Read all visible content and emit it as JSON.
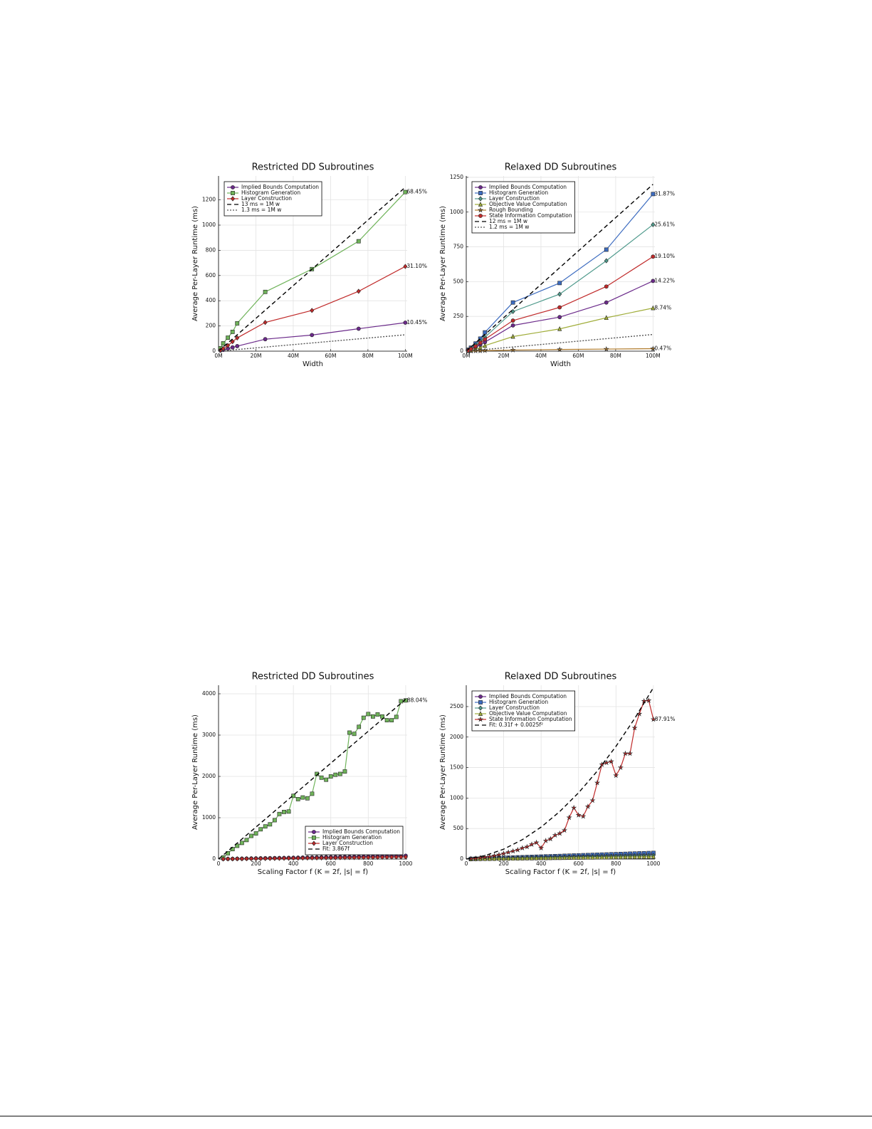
{
  "chart_data": [
    {
      "type": "line",
      "title": "Restricted DD Subroutines",
      "x_label": "Width",
      "y_label": "Average Per-Layer Runtime (ms)",
      "xlim": [
        0,
        101
      ],
      "ylim": [
        0,
        1390
      ],
      "xticks": [
        {
          "value": 0,
          "label": "0M"
        },
        {
          "value": 20,
          "label": "20M"
        },
        {
          "value": 40,
          "label": "40M"
        },
        {
          "value": 60,
          "label": "60M"
        },
        {
          "value": 80,
          "label": "80M"
        },
        {
          "value": 100,
          "label": "100M"
        }
      ],
      "yticks": [
        0,
        200,
        400,
        600,
        800,
        1000,
        1200
      ],
      "grid": true,
      "legend": "top-left",
      "x": [
        1,
        2.5,
        5,
        7.5,
        10,
        25,
        50,
        75,
        100
      ],
      "series": [
        {
          "name": "Implied Bounds Computation",
          "color": "#6b2a8a",
          "marker": "circle",
          "values": [
            5,
            10,
            20,
            30,
            40,
            95,
            128,
            178,
            226
          ],
          "end_label": "10.45%"
        },
        {
          "name": "Histogram Generation",
          "color": "#6fb35a",
          "marker": "square",
          "values": [
            23,
            62,
            107,
            153,
            221,
            470,
            651,
            872,
            1262
          ],
          "end_label": "68.45%"
        },
        {
          "name": "Layer Construction",
          "color": "#c02a2a",
          "marker": "diamond",
          "values": [
            8,
            20,
            45,
            75,
            105,
            228,
            323,
            475,
            672
          ],
          "end_label": "31.10%"
        },
        {
          "name": "13 ms = 1M w",
          "color": "#000000",
          "dash": "dash",
          "x": [
            0,
            100
          ],
          "values": [
            0,
            1300
          ]
        },
        {
          "name": "1.3 ms = 1M w",
          "color": "#555555",
          "dash": "dot",
          "x": [
            0,
            100
          ],
          "values": [
            0,
            130
          ]
        }
      ]
    },
    {
      "type": "line",
      "title": "Relaxed DD Subroutines",
      "x_label": "Width",
      "y_label": "Average Per-Layer Runtime (ms)",
      "xlim": [
        0,
        101
      ],
      "ylim": [
        0,
        1260
      ],
      "xticks": [
        {
          "value": 0,
          "label": "0M"
        },
        {
          "value": 20,
          "label": "20M"
        },
        {
          "value": 40,
          "label": "40M"
        },
        {
          "value": 60,
          "label": "60M"
        },
        {
          "value": 80,
          "label": "80M"
        },
        {
          "value": 100,
          "label": "100M"
        }
      ],
      "yticks": [
        0,
        250,
        500,
        750,
        1000,
        1250
      ],
      "grid": true,
      "legend": "top-left",
      "x": [
        1,
        2.5,
        5,
        7.5,
        10,
        25,
        50,
        75,
        100
      ],
      "series": [
        {
          "name": "Implied Bounds Computation",
          "color": "#6b2a8a",
          "marker": "circle",
          "values": [
            5,
            12,
            28,
            45,
            65,
            185,
            245,
            350,
            505
          ],
          "end_label": "14.22%"
        },
        {
          "name": "Histogram Generation",
          "color": "#3d6cc0",
          "marker": "square",
          "values": [
            10,
            25,
            55,
            90,
            135,
            350,
            490,
            730,
            1130
          ],
          "end_label": "31.87%"
        },
        {
          "name": "Layer Construction",
          "color": "#4f9a8c",
          "marker": "diamond",
          "values": [
            8,
            20,
            45,
            70,
            100,
            285,
            410,
            650,
            910
          ],
          "end_label": "25.61%"
        },
        {
          "name": "Objective Value Computation",
          "color": "#a0ad3a",
          "marker": "triangle",
          "values": [
            2,
            6,
            15,
            25,
            40,
            105,
            160,
            240,
            310
          ],
          "end_label": "8.74%"
        },
        {
          "name": "Rough Bounding",
          "color": "#b07a2a",
          "marker": "star",
          "values": [
            0.5,
            1,
            2,
            3,
            4,
            8,
            12,
            15,
            18
          ],
          "end_label": "0.47%"
        },
        {
          "name": "State Information Computation",
          "color": "#c02a2a",
          "marker": "circle",
          "values": [
            5,
            15,
            35,
            60,
            85,
            220,
            315,
            465,
            680
          ],
          "end_label": "19.10%"
        },
        {
          "name": "12 ms = 1M w",
          "color": "#000000",
          "dash": "dash",
          "x": [
            0,
            100
          ],
          "values": [
            0,
            1200
          ]
        },
        {
          "name": "1.2 ms = 1M w",
          "color": "#555555",
          "dash": "dot",
          "x": [
            0,
            100
          ],
          "values": [
            0,
            120
          ]
        }
      ]
    },
    {
      "type": "line",
      "title": "Restricted DD Subroutines",
      "x_label": "Scaling Factor f  (K = 2f, |s| = f)",
      "y_label": "Average Per-Layer Runtime (ms)",
      "xlim": [
        0,
        1008
      ],
      "ylim": [
        0,
        4207
      ],
      "xticks": [
        0,
        200,
        400,
        600,
        800,
        1000
      ],
      "yticks": [
        0,
        1000,
        2000,
        3000,
        4000
      ],
      "grid": true,
      "legend": "bottom-right",
      "x": [
        25,
        50,
        75,
        100,
        125,
        150,
        175,
        200,
        225,
        250,
        275,
        300,
        325,
        350,
        375,
        400,
        425,
        450,
        475,
        500,
        525,
        550,
        575,
        600,
        625,
        650,
        675,
        700,
        725,
        750,
        775,
        800,
        825,
        850,
        875,
        900,
        925,
        950,
        975,
        1000
      ],
      "series": [
        {
          "name": "Implied Bounds Computation",
          "color": "#6b2a8a",
          "marker": "circle",
          "values": [
            2,
            4,
            6,
            8,
            10,
            12,
            14,
            16,
            18,
            20,
            22,
            24,
            26,
            28,
            30,
            32,
            34,
            36,
            38,
            40,
            42,
            44,
            46,
            48,
            50,
            52,
            54,
            56,
            58,
            60,
            62,
            64,
            66,
            68,
            70,
            72,
            74,
            76,
            78,
            80
          ]
        },
        {
          "name": "Histogram Generation",
          "color": "#6fb35a",
          "marker": "square",
          "values": [
            40,
            140,
            240,
            320,
            390,
            460,
            560,
            620,
            720,
            790,
            840,
            940,
            1090,
            1140,
            1150,
            1530,
            1450,
            1490,
            1470,
            1580,
            2060,
            1970,
            1920,
            2000,
            2040,
            2060,
            2120,
            3060,
            3030,
            3200,
            3420,
            3510,
            3450,
            3500,
            3450,
            3360,
            3360,
            3440,
            3820,
            3840
          ],
          "end_label": "88.04%"
        },
        {
          "name": "Layer Construction",
          "color": "#c02a2a",
          "marker": "diamond",
          "values": [
            1,
            3,
            4,
            5,
            6,
            8,
            9,
            10,
            11,
            13,
            14,
            15,
            16,
            18,
            19,
            20,
            21,
            23,
            24,
            25,
            26,
            28,
            29,
            30,
            31,
            33,
            34,
            35,
            36,
            38,
            39,
            40,
            41,
            43,
            44,
            45,
            46,
            48,
            49,
            50
          ]
        },
        {
          "name": "Fit: 3.867f",
          "color": "#000000",
          "dash": "dash",
          "x": [
            0,
            1000
          ],
          "values": [
            0,
            3867
          ]
        }
      ]
    },
    {
      "type": "line",
      "title": "Relaxed DD Subroutines",
      "x_label": "Scaling Factor f  (K = 2f, |s| = f)",
      "y_label": "Average Per-Layer Runtime (ms)",
      "xlim": [
        0,
        1008
      ],
      "ylim": [
        0,
        2850
      ],
      "xticks": [
        0,
        200,
        400,
        600,
        800,
        1000
      ],
      "yticks": [
        0,
        500,
        1000,
        1500,
        2000,
        2500
      ],
      "grid": true,
      "legend": "top-left",
      "x": [
        25,
        50,
        75,
        100,
        125,
        150,
        175,
        200,
        225,
        250,
        275,
        300,
        325,
        350,
        375,
        400,
        425,
        450,
        475,
        500,
        525,
        550,
        575,
        600,
        625,
        650,
        675,
        700,
        725,
        750,
        775,
        800,
        825,
        850,
        875,
        900,
        925,
        950,
        975,
        1000
      ],
      "series": [
        {
          "name": "Implied Bounds Computation",
          "color": "#6b2a8a",
          "marker": "circle",
          "values": [
            2,
            4,
            6,
            8,
            10,
            12,
            14,
            16,
            18,
            20,
            22,
            24,
            26,
            28,
            30,
            32,
            34,
            36,
            38,
            40,
            42,
            44,
            46,
            48,
            50,
            52,
            54,
            56,
            58,
            60,
            62,
            64,
            66,
            68,
            70,
            72,
            74,
            76,
            78,
            80
          ]
        },
        {
          "name": "Histogram Generation",
          "color": "#3d6cc0",
          "marker": "square",
          "values": [
            3,
            5,
            8,
            10,
            13,
            15,
            18,
            20,
            23,
            25,
            28,
            30,
            33,
            35,
            38,
            40,
            43,
            45,
            48,
            50,
            53,
            55,
            58,
            60,
            63,
            65,
            68,
            70,
            73,
            75,
            78,
            80,
            83,
            85,
            88,
            90,
            93,
            95,
            98,
            100
          ]
        },
        {
          "name": "Layer Construction",
          "color": "#4f9a8c",
          "marker": "diamond",
          "values": [
            2,
            3,
            5,
            6,
            8,
            9,
            11,
            12,
            14,
            15,
            17,
            18,
            20,
            21,
            23,
            24,
            26,
            27,
            29,
            30,
            32,
            33,
            35,
            36,
            38,
            39,
            41,
            42,
            44,
            45,
            47,
            48,
            50,
            51,
            53,
            54,
            56,
            57,
            59,
            60
          ]
        },
        {
          "name": "Objective Value Computation",
          "color": "#a0ad3a",
          "marker": "triangle",
          "values": [
            1,
            2,
            3,
            4,
            5,
            6,
            7,
            8,
            9,
            10,
            11,
            12,
            13,
            14,
            15,
            16,
            17,
            18,
            19,
            20,
            21,
            22,
            23,
            24,
            25,
            26,
            27,
            28,
            29,
            30,
            31,
            32,
            33,
            34,
            35,
            36,
            37,
            38,
            39,
            40
          ]
        },
        {
          "name": "State Information Computation",
          "color": "#c02a2a",
          "marker": "star",
          "values": [
            5,
            10,
            20,
            30,
            40,
            55,
            70,
            90,
            110,
            130,
            150,
            180,
            200,
            240,
            270,
            180,
            300,
            330,
            390,
            420,
            470,
            680,
            840,
            720,
            700,
            860,
            960,
            1250,
            1550,
            1580,
            1600,
            1370,
            1500,
            1730,
            1730,
            2150,
            2380,
            2590,
            2600,
            2290
          ],
          "end_label": "87.91%"
        },
        {
          "name": "Fit: 0.31f + 0.0025f²",
          "color": "#000000",
          "dash": "dash",
          "x": [
            0,
            100,
            200,
            300,
            400,
            500,
            600,
            700,
            800,
            900,
            1000
          ],
          "values": [
            0,
            56,
            162,
            318,
            524,
            780,
            1086,
            1442,
            1848,
            2304,
            2810
          ]
        }
      ]
    }
  ]
}
